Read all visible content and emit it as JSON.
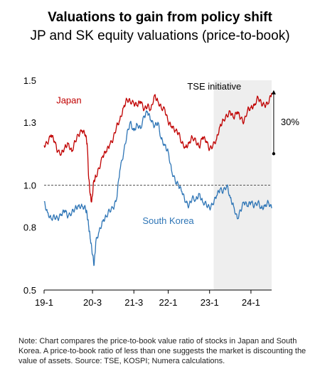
{
  "header": {
    "title": "Valuations to gain from policy shift",
    "subtitle": "JP and SK equity valuations (price-to-book)"
  },
  "note": "Note: Chart compares the price-to-book value ratio of stocks in Japan and South Korea. A price-to-book ratio of less than one suggests the market is discounting the value of assets. Source: TSE, KOSPI; Numera calculations.",
  "chart_data": {
    "type": "line",
    "title": "Valuations to gain from policy shift",
    "subtitle": "JP and SK equity valuations (price-to-book)",
    "x_ticks": [
      "19-1",
      "20-3",
      "21-3",
      "22-1",
      "23-1",
      "24-1"
    ],
    "x_tick_positions": [
      2019.0,
      2020.17,
      2021.17,
      2022.0,
      2023.0,
      2024.0
    ],
    "xlim": [
      2019.0,
      2024.5
    ],
    "y_ticks": [
      "1.5",
      "1.3",
      "1.0",
      "0.8",
      "0.5"
    ],
    "y_tick_values": [
      1.5,
      1.3,
      1.0,
      0.8,
      0.5
    ],
    "ylim": [
      0.5,
      1.5
    ],
    "reference_line": {
      "y": 1.0,
      "style": "dashed"
    },
    "shaded_region": {
      "x_start": 2023.1,
      "x_end": 2024.5,
      "label": "TSE initiative"
    },
    "annotation": {
      "label": "30%",
      "x": 2024.55,
      "y_from": 1.15,
      "y_to": 1.45
    },
    "series": [
      {
        "name": "Japan",
        "color": "#c00000",
        "label_at": [
          2019.6,
          1.39
        ],
        "points": [
          [
            2019.0,
            1.19
          ],
          [
            2019.08,
            1.2
          ],
          [
            2019.17,
            1.24
          ],
          [
            2019.25,
            1.21
          ],
          [
            2019.33,
            1.16
          ],
          [
            2019.42,
            1.15
          ],
          [
            2019.5,
            1.18
          ],
          [
            2019.58,
            1.2
          ],
          [
            2019.67,
            1.16
          ],
          [
            2019.75,
            1.21
          ],
          [
            2019.83,
            1.24
          ],
          [
            2019.92,
            1.26
          ],
          [
            2020.0,
            1.24
          ],
          [
            2020.04,
            1.2
          ],
          [
            2020.08,
            1.03
          ],
          [
            2020.12,
            0.95
          ],
          [
            2020.15,
            0.92
          ],
          [
            2020.2,
            1.02
          ],
          [
            2020.25,
            1.04
          ],
          [
            2020.33,
            1.08
          ],
          [
            2020.42,
            1.14
          ],
          [
            2020.5,
            1.16
          ],
          [
            2020.58,
            1.19
          ],
          [
            2020.67,
            1.22
          ],
          [
            2020.75,
            1.28
          ],
          [
            2020.83,
            1.31
          ],
          [
            2020.92,
            1.37
          ],
          [
            2021.0,
            1.41
          ],
          [
            2021.08,
            1.4
          ],
          [
            2021.17,
            1.39
          ],
          [
            2021.25,
            1.38
          ],
          [
            2021.33,
            1.4
          ],
          [
            2021.42,
            1.36
          ],
          [
            2021.5,
            1.38
          ],
          [
            2021.58,
            1.36
          ],
          [
            2021.67,
            1.43
          ],
          [
            2021.75,
            1.4
          ],
          [
            2021.83,
            1.37
          ],
          [
            2021.92,
            1.36
          ],
          [
            2022.0,
            1.3
          ],
          [
            2022.08,
            1.28
          ],
          [
            2022.17,
            1.26
          ],
          [
            2022.25,
            1.25
          ],
          [
            2022.33,
            1.2
          ],
          [
            2022.42,
            1.18
          ],
          [
            2022.5,
            1.2
          ],
          [
            2022.58,
            1.23
          ],
          [
            2022.67,
            1.21
          ],
          [
            2022.75,
            1.18
          ],
          [
            2022.83,
            1.23
          ],
          [
            2022.92,
            1.21
          ],
          [
            2023.0,
            1.17
          ],
          [
            2023.08,
            1.19
          ],
          [
            2023.17,
            1.22
          ],
          [
            2023.25,
            1.28
          ],
          [
            2023.33,
            1.31
          ],
          [
            2023.42,
            1.33
          ],
          [
            2023.5,
            1.35
          ],
          [
            2023.58,
            1.32
          ],
          [
            2023.67,
            1.35
          ],
          [
            2023.75,
            1.32
          ],
          [
            2023.83,
            1.3
          ],
          [
            2023.92,
            1.36
          ],
          [
            2024.0,
            1.37
          ],
          [
            2024.08,
            1.38
          ],
          [
            2024.17,
            1.42
          ],
          [
            2024.25,
            1.39
          ],
          [
            2024.33,
            1.38
          ],
          [
            2024.42,
            1.39
          ],
          [
            2024.5,
            1.44
          ]
        ]
      },
      {
        "name": "South Korea",
        "color": "#2e75b6",
        "label_at": [
          2022.0,
          0.815
        ],
        "points": [
          [
            2019.0,
            0.92
          ],
          [
            2019.08,
            0.87
          ],
          [
            2019.17,
            0.84
          ],
          [
            2019.25,
            0.85
          ],
          [
            2019.33,
            0.84
          ],
          [
            2019.42,
            0.86
          ],
          [
            2019.5,
            0.88
          ],
          [
            2019.58,
            0.85
          ],
          [
            2019.67,
            0.87
          ],
          [
            2019.75,
            0.89
          ],
          [
            2019.83,
            0.9
          ],
          [
            2019.92,
            0.9
          ],
          [
            2020.0,
            0.89
          ],
          [
            2020.04,
            0.86
          ],
          [
            2020.08,
            0.8
          ],
          [
            2020.12,
            0.74
          ],
          [
            2020.17,
            0.67
          ],
          [
            2020.21,
            0.62
          ],
          [
            2020.25,
            0.73
          ],
          [
            2020.33,
            0.78
          ],
          [
            2020.42,
            0.83
          ],
          [
            2020.5,
            0.85
          ],
          [
            2020.58,
            0.88
          ],
          [
            2020.67,
            0.89
          ],
          [
            2020.75,
            0.93
          ],
          [
            2020.83,
            1.07
          ],
          [
            2020.92,
            1.15
          ],
          [
            2021.0,
            1.24
          ],
          [
            2021.08,
            1.3
          ],
          [
            2021.17,
            1.26
          ],
          [
            2021.25,
            1.29
          ],
          [
            2021.33,
            1.27
          ],
          [
            2021.42,
            1.33
          ],
          [
            2021.5,
            1.35
          ],
          [
            2021.58,
            1.31
          ],
          [
            2021.67,
            1.28
          ],
          [
            2021.75,
            1.3
          ],
          [
            2021.83,
            1.22
          ],
          [
            2021.92,
            1.19
          ],
          [
            2022.0,
            1.16
          ],
          [
            2022.08,
            1.07
          ],
          [
            2022.17,
            1.02
          ],
          [
            2022.25,
            1.0
          ],
          [
            2022.33,
            0.97
          ],
          [
            2022.42,
            0.92
          ],
          [
            2022.5,
            0.9
          ],
          [
            2022.58,
            0.94
          ],
          [
            2022.67,
            0.93
          ],
          [
            2022.75,
            0.96
          ],
          [
            2022.83,
            0.92
          ],
          [
            2022.92,
            0.91
          ],
          [
            2023.0,
            0.89
          ],
          [
            2023.08,
            0.91
          ],
          [
            2023.17,
            0.95
          ],
          [
            2023.25,
            0.98
          ],
          [
            2023.33,
            0.97
          ],
          [
            2023.42,
            1.0
          ],
          [
            2023.5,
            0.94
          ],
          [
            2023.58,
            0.9
          ],
          [
            2023.67,
            0.84
          ],
          [
            2023.75,
            0.88
          ],
          [
            2023.83,
            0.92
          ],
          [
            2023.92,
            0.9
          ],
          [
            2024.0,
            0.92
          ],
          [
            2024.08,
            0.9
          ],
          [
            2024.17,
            0.92
          ],
          [
            2024.25,
            0.89
          ],
          [
            2024.33,
            0.9
          ],
          [
            2024.42,
            0.92
          ],
          [
            2024.5,
            0.89
          ]
        ]
      }
    ]
  }
}
